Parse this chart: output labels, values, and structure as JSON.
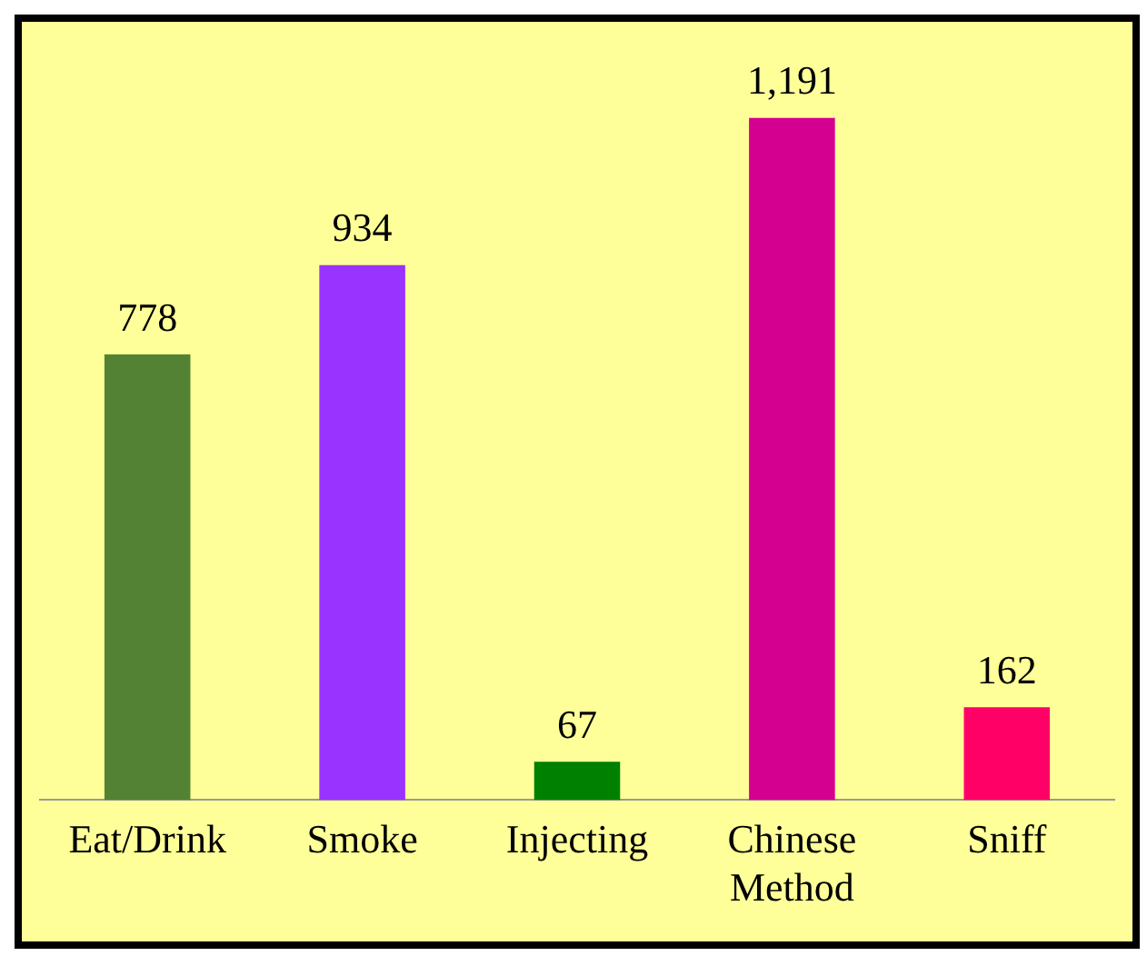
{
  "chart_data": {
    "type": "bar",
    "categories": [
      "Eat/Drink",
      "Smoke",
      "Injecting",
      "Chinese Method",
      "Sniff"
    ],
    "values": [
      778,
      934,
      67,
      1191,
      162
    ],
    "colors": [
      "#548235",
      "#9933ff",
      "#008000",
      "#d4008f",
      "#ff0066"
    ],
    "data_labels": true,
    "value_labels": [
      "778",
      "934",
      "67",
      "1,191",
      "162"
    ],
    "legend": false
  }
}
